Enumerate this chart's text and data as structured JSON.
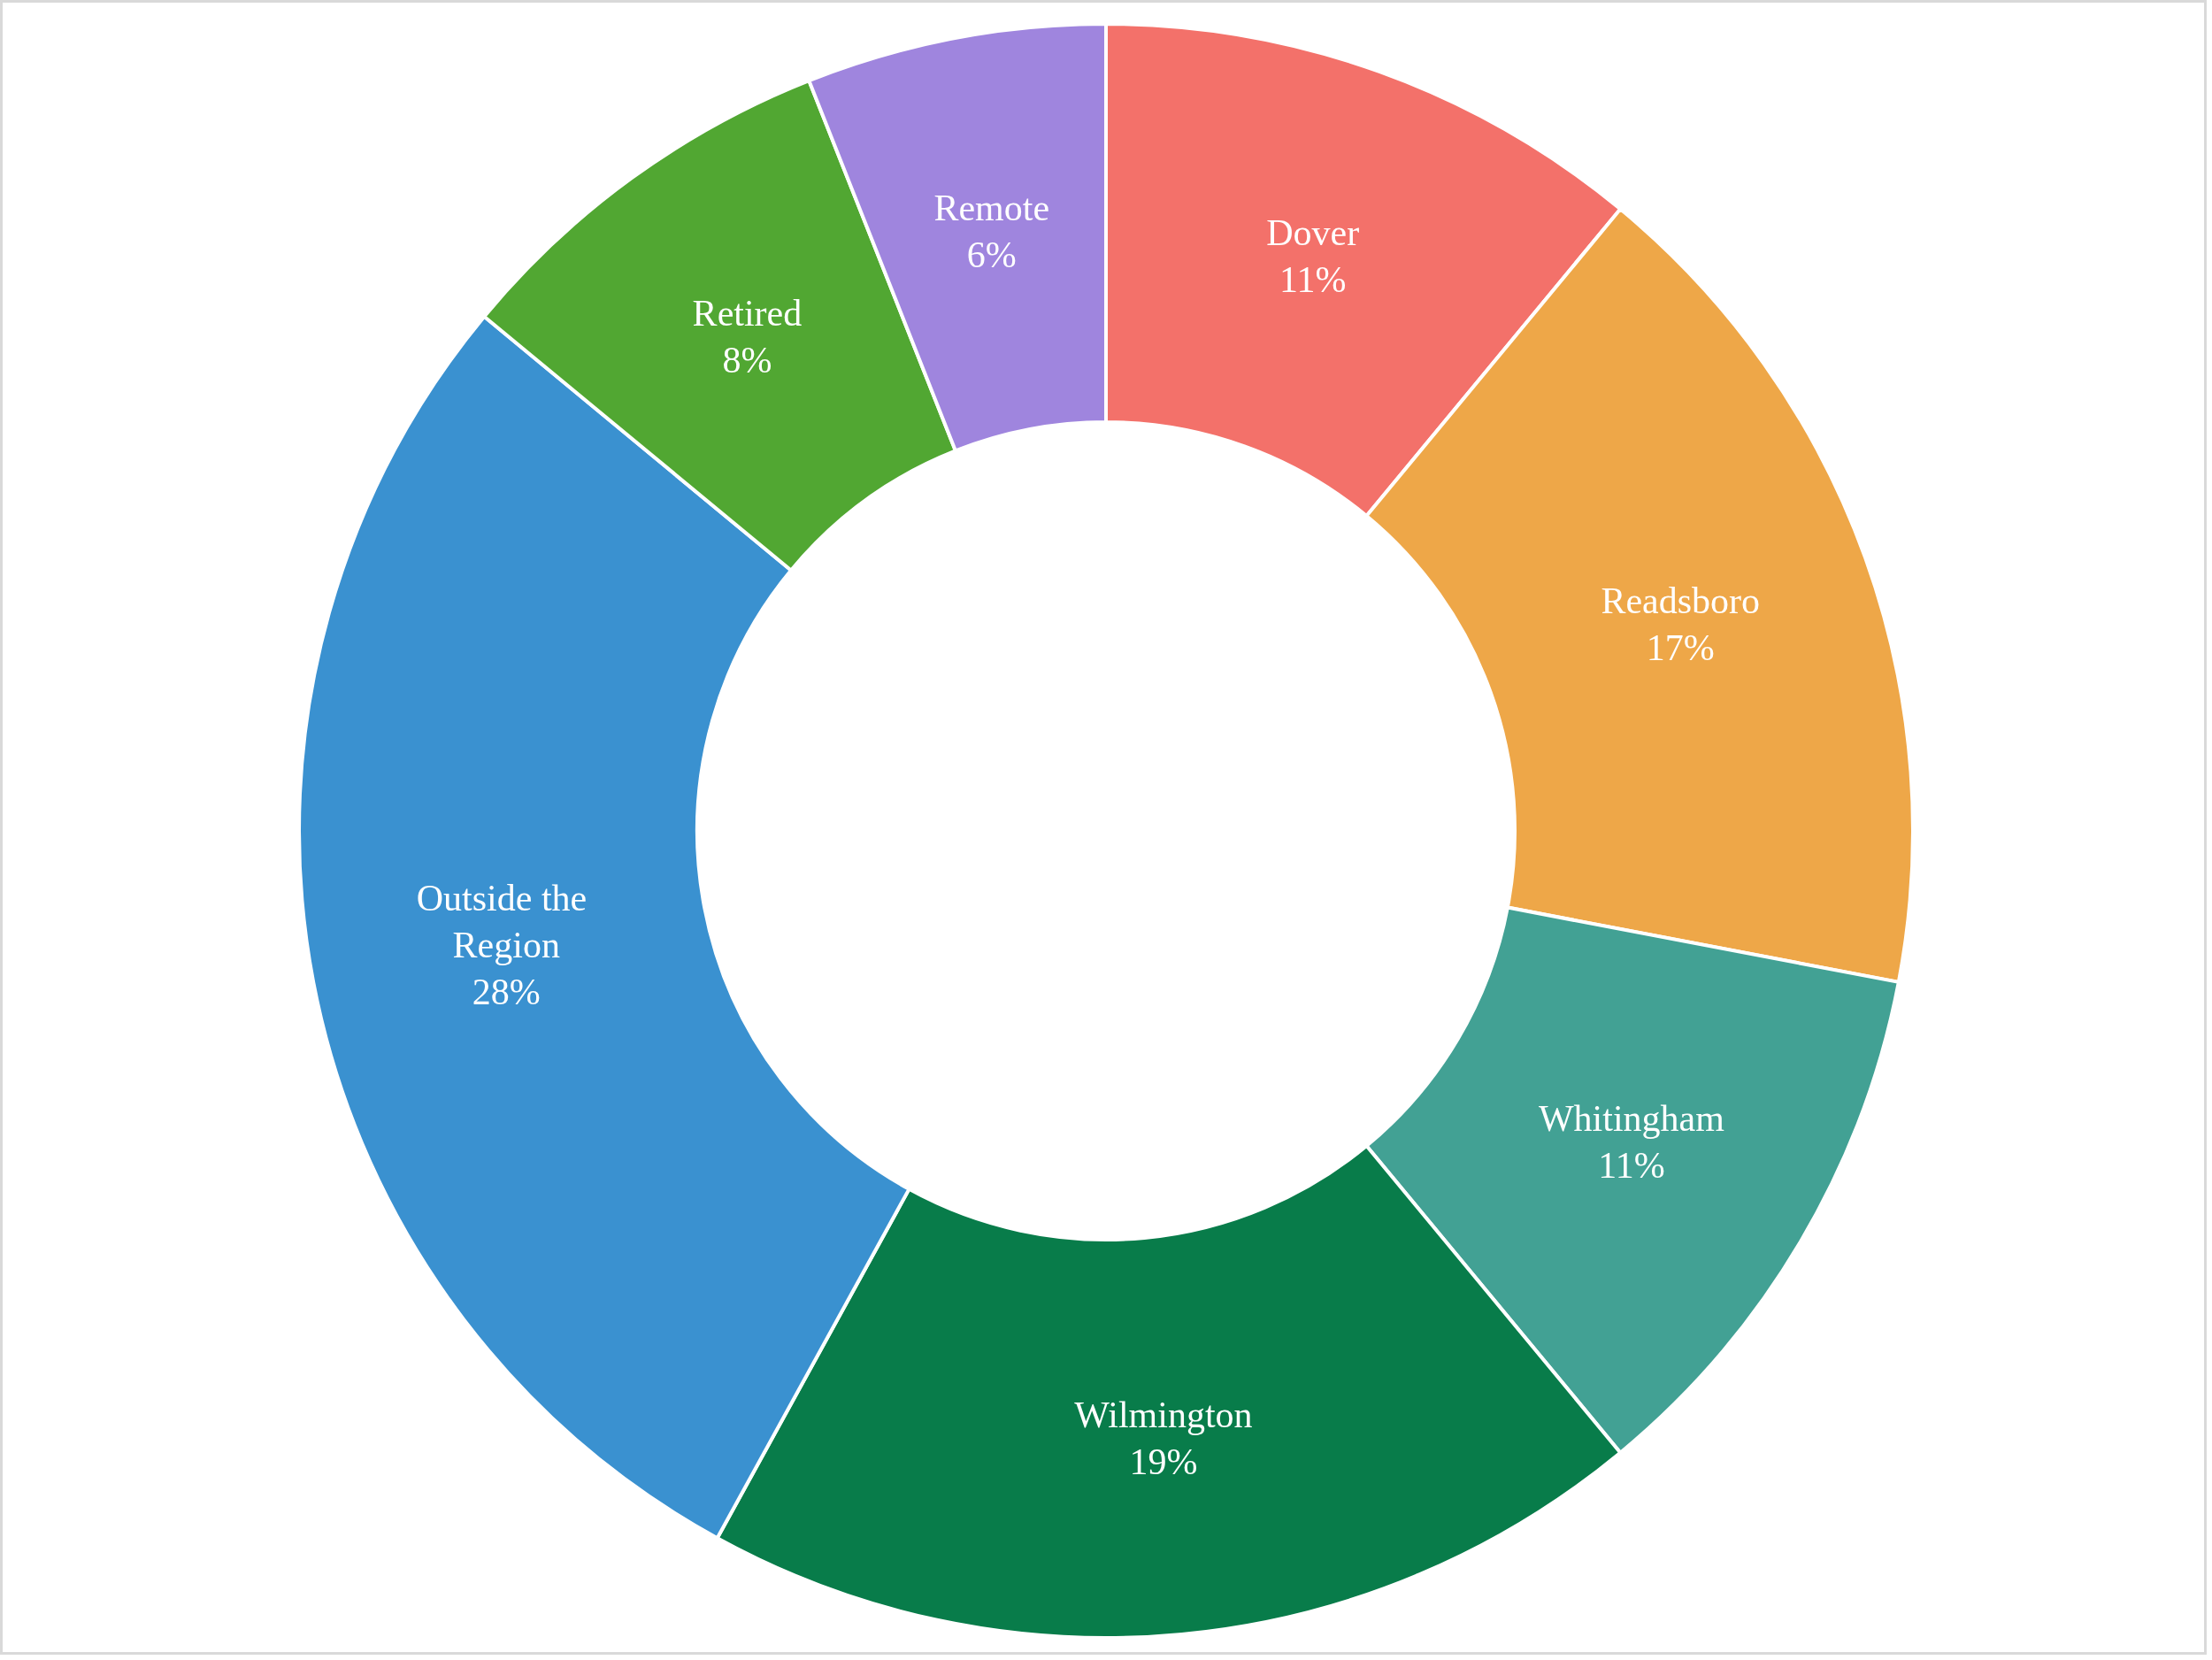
{
  "chart_data": {
    "type": "donut",
    "categories": [
      "Dover",
      "Readsboro",
      "Whitingham",
      "Wilmington",
      "Outside the Region",
      "Retired",
      "Remote"
    ],
    "values": [
      11,
      17,
      11,
      19,
      28,
      8,
      6
    ],
    "colors": [
      "#f3716a",
      "#eea748",
      "#42a194",
      "#087c4a",
      "#3a91d0",
      "#51a732",
      "#9f85de"
    ],
    "value_labels": [
      "11%",
      "17%",
      "11%",
      "19%",
      "28%",
      "8%",
      "6%"
    ],
    "legend": false
  }
}
